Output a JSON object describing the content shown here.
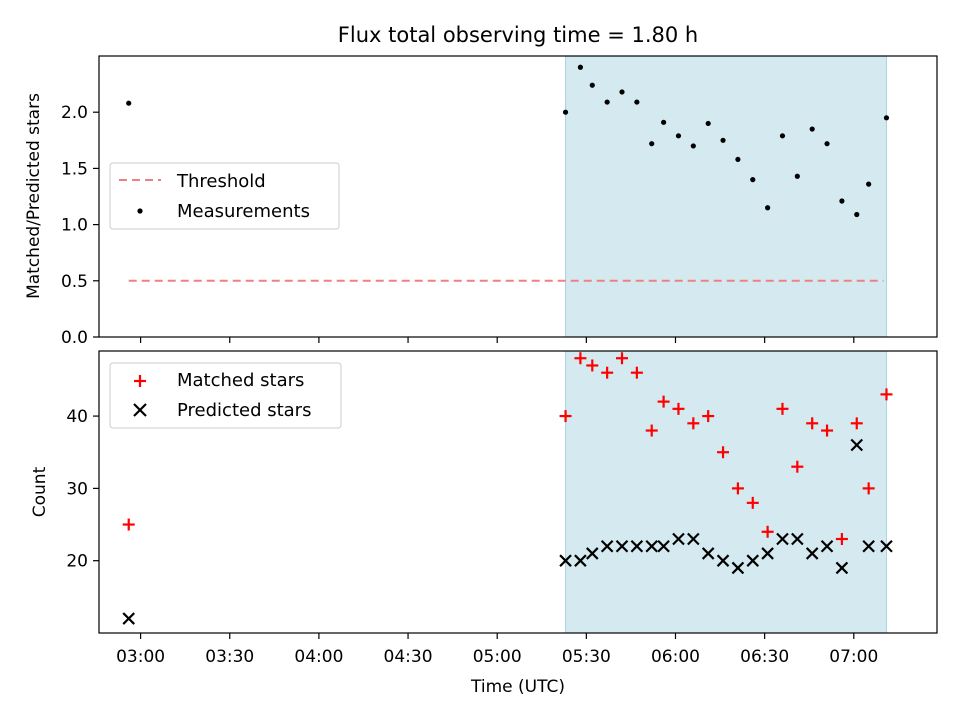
{
  "title": "Flux total observing time = 1.80 h",
  "colors": {
    "shade": "#d4eaf0",
    "threshold": "#f08080",
    "matched": "#ff0000",
    "predicted": "#000000",
    "measurement": "#000000"
  },
  "chart_data": [
    {
      "type": "scatter",
      "ylabel": "Matched/Predicted stars",
      "ylim": [
        0,
        2.5
      ],
      "yticks": [
        0.0,
        0.5,
        1.0,
        1.5,
        2.0
      ],
      "ytick_labels": [
        "0.0",
        "0.5",
        "1.0",
        "1.5",
        "2.0"
      ],
      "xlim": [
        "02:46",
        "07:28"
      ],
      "shaded_region": [
        "05:23",
        "07:11"
      ],
      "legend": {
        "position": "center-left",
        "entries": [
          "Threshold",
          "Measurements"
        ]
      },
      "series": [
        {
          "name": "Threshold",
          "style": "dashed-line",
          "x": [
            "02:56",
            "07:10"
          ],
          "y": [
            0.5,
            0.5
          ]
        },
        {
          "name": "Measurements",
          "style": "dot",
          "x": [
            "02:56",
            "05:23",
            "05:28",
            "05:32",
            "05:37",
            "05:42",
            "05:47",
            "05:52",
            "05:56",
            "06:01",
            "06:06",
            "06:11",
            "06:16",
            "06:21",
            "06:26",
            "06:31",
            "06:36",
            "06:41",
            "06:46",
            "06:51",
            "06:56",
            "07:01",
            "07:05",
            "07:11"
          ],
          "y": [
            2.08,
            2.0,
            2.4,
            2.24,
            2.09,
            2.18,
            2.09,
            1.72,
            1.91,
            1.79,
            1.7,
            1.9,
            1.75,
            1.58,
            1.4,
            1.15,
            1.79,
            1.43,
            1.85,
            1.72,
            1.21,
            1.09,
            1.36,
            1.95
          ]
        }
      ]
    },
    {
      "type": "scatter",
      "ylabel": "Count",
      "xlabel": "Time (UTC)",
      "ylim": [
        10,
        49
      ],
      "yticks": [
        20,
        30,
        40
      ],
      "ytick_labels": [
        "20",
        "30",
        "40"
      ],
      "xlim": [
        "02:46",
        "07:28"
      ],
      "xticks": [
        "03:00",
        "03:30",
        "04:00",
        "04:30",
        "05:00",
        "05:30",
        "06:00",
        "06:30",
        "07:00"
      ],
      "xtick_labels": [
        "03:00",
        "03:30",
        "04:00",
        "04:30",
        "05:00",
        "05:30",
        "06:00",
        "06:30",
        "07:00"
      ],
      "shaded_region": [
        "05:23",
        "07:11"
      ],
      "legend": {
        "position": "top-left",
        "entries": [
          "Matched stars",
          "Predicted stars"
        ]
      },
      "series": [
        {
          "name": "Matched stars",
          "marker": "plus",
          "x": [
            "02:56",
            "05:23",
            "05:28",
            "05:32",
            "05:37",
            "05:42",
            "05:47",
            "05:52",
            "05:56",
            "06:01",
            "06:06",
            "06:11",
            "06:16",
            "06:21",
            "06:26",
            "06:31",
            "06:36",
            "06:41",
            "06:46",
            "06:51",
            "06:56",
            "07:01",
            "07:05",
            "07:11"
          ],
          "y": [
            25,
            40,
            48,
            47,
            46,
            48,
            46,
            38,
            42,
            41,
            39,
            40,
            35,
            30,
            28,
            24,
            41,
            33,
            39,
            38,
            23,
            39,
            30,
            43
          ]
        },
        {
          "name": "Predicted stars",
          "marker": "x",
          "x": [
            "02:56",
            "05:23",
            "05:28",
            "05:32",
            "05:37",
            "05:42",
            "05:47",
            "05:52",
            "05:56",
            "06:01",
            "06:06",
            "06:11",
            "06:16",
            "06:21",
            "06:26",
            "06:31",
            "06:36",
            "06:41",
            "06:46",
            "06:51",
            "06:56",
            "07:01",
            "07:05",
            "07:11"
          ],
          "y": [
            12,
            20,
            20,
            21,
            22,
            22,
            22,
            22,
            22,
            23,
            23,
            21,
            20,
            19,
            20,
            21,
            23,
            23,
            21,
            22,
            19,
            36,
            22,
            22
          ]
        }
      ]
    }
  ]
}
